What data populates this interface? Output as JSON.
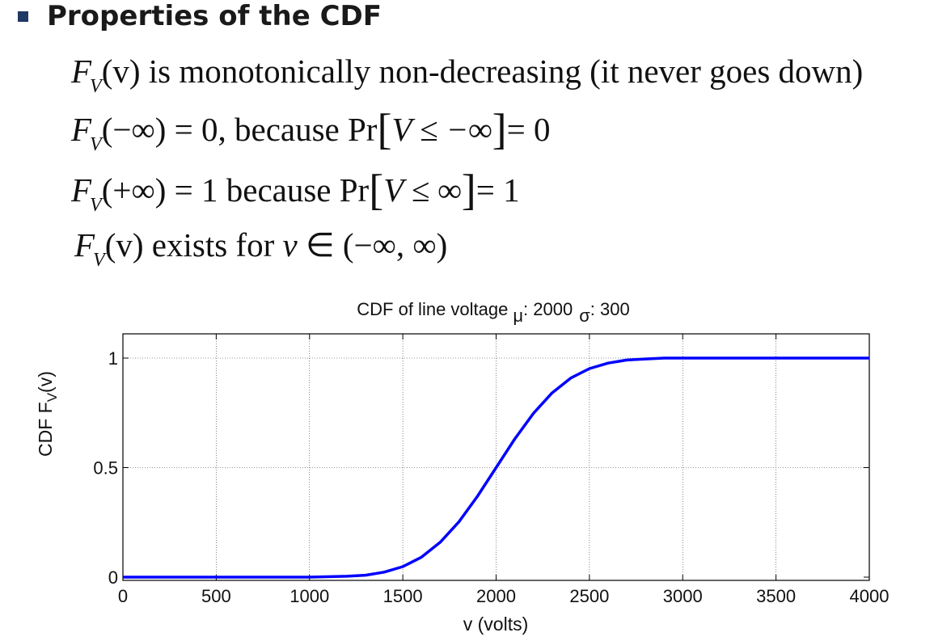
{
  "slide": {
    "heading": "Properties of the CDF",
    "prop1": {
      "F": "F",
      "sub": "V",
      "arg": "(v)",
      "text": " is monotonically non-decreasing (it never goes down)"
    },
    "prop2": {
      "F": "F",
      "sub": "V",
      "arg": "(−∞) = 0,",
      "because": " because Pr",
      "lb": "[",
      "expr": "V ≤ −∞",
      "rb": "]",
      "result": "= 0"
    },
    "prop3": {
      "F": "F",
      "sub": "V",
      "arg": "(+∞) = 1",
      "because": " because Pr",
      "lb": "[",
      "expr": "V ≤ ∞",
      "rb": "]",
      "result": "= 1"
    },
    "prop4": {
      "F": "F",
      "sub": "V",
      "arg": "(v)",
      "text": " exists for ",
      "var": "v",
      "set": " ∈ (−∞, ∞)"
    }
  },
  "chart_data": {
    "type": "line",
    "title": "CDF of line voltage",
    "title_mu_symbol": "μ",
    "title_mu_value": ": 2000",
    "title_sigma_symbol": "σ",
    "title_sigma_value": ": 300",
    "xlabel": "v (volts)",
    "ylabel_prefix": "CDF F",
    "ylabel_sub": "V",
    "ylabel_suffix": "(v)",
    "xlim": [
      0,
      4000
    ],
    "ylim": [
      -0.01,
      1.1
    ],
    "xticks": [
      0,
      500,
      1000,
      1500,
      2000,
      2500,
      3000,
      3500,
      4000
    ],
    "xtick_labels": [
      "0",
      "500",
      "1000",
      "1500",
      "2000",
      "2500",
      "3000",
      "3500",
      "4000"
    ],
    "yticks": [
      0,
      0.5,
      1
    ],
    "ytick_labels": [
      "0",
      "0.5",
      "1"
    ],
    "grid": true,
    "mu": 2000,
    "sigma": 300,
    "series": [
      {
        "name": "CDF",
        "color": "#0000ff",
        "x": [
          0,
          1000,
          1200,
          1300,
          1400,
          1500,
          1600,
          1700,
          1800,
          1900,
          2000,
          2100,
          2200,
          2300,
          2400,
          2500,
          2600,
          2700,
          2800,
          2900,
          3000,
          3500,
          4000
        ],
        "y": [
          0,
          0,
          0.004,
          0.009,
          0.023,
          0.048,
          0.091,
          0.159,
          0.252,
          0.369,
          0.5,
          0.631,
          0.748,
          0.841,
          0.909,
          0.952,
          0.977,
          0.991,
          0.996,
          1,
          1,
          1,
          1
        ]
      }
    ]
  }
}
